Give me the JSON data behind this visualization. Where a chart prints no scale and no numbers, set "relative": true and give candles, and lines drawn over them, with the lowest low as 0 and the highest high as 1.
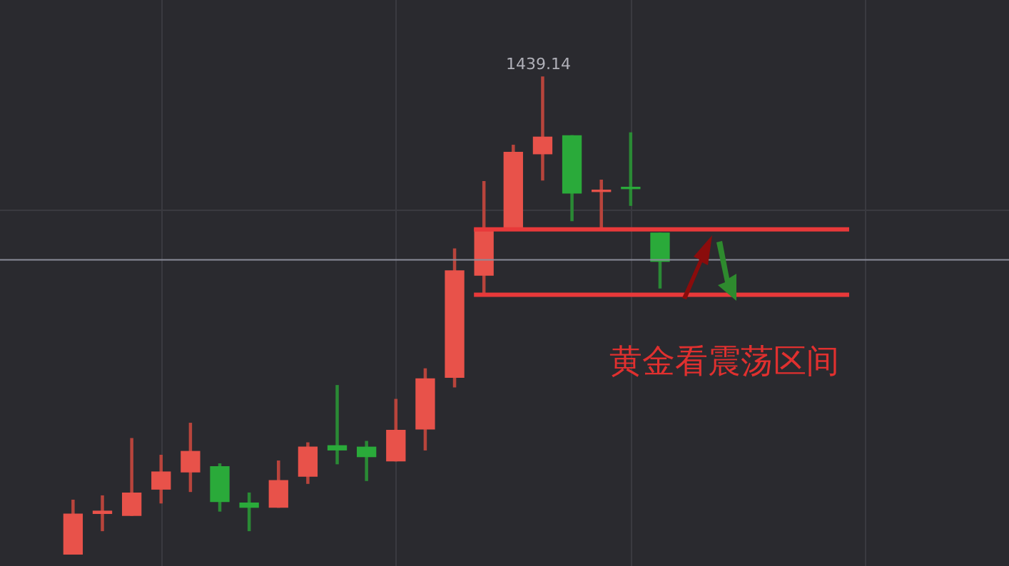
{
  "chart_data": {
    "type": "candlestick",
    "relative": true,
    "grid": true,
    "categories": [
      null,
      null,
      null,
      null,
      null,
      null,
      null,
      null,
      null,
      null,
      null,
      null,
      null,
      null,
      null,
      null,
      null,
      null,
      null,
      null,
      null
    ],
    "ohlc": [
      [
        0,
        0.114,
        0,
        0.085
      ],
      [
        0.086,
        0.123,
        0.05,
        0.091
      ],
      [
        0.082,
        0.243,
        0.082,
        0.129
      ],
      [
        0.137,
        0.208,
        0.108,
        0.173
      ],
      [
        0.173,
        0.275,
        0.132,
        0.216
      ],
      [
        0.184,
        0.19,
        0.091,
        0.111
      ],
      [
        0.108,
        0.129,
        0.05,
        0.099
      ],
      [
        0.099,
        0.196,
        0.099,
        0.155
      ],
      [
        0.164,
        0.234,
        0.149,
        0.225
      ],
      [
        0.228,
        0.354,
        0.19,
        0.219
      ],
      [
        0.225,
        0.237,
        0.155,
        0.205
      ],
      [
        0.196,
        0.325,
        0.196,
        0.26
      ],
      [
        0.263,
        0.389,
        0.219,
        0.368
      ],
      [
        0.371,
        0.64,
        0.351,
        0.594
      ],
      [
        0.585,
        0.781,
        0.547,
        0.681
      ],
      [
        0.684,
        0.857,
        0.684,
        0.842
      ],
      [
        0.839,
        1,
        0.784,
        0.874
      ],
      [
        0.877,
        0.877,
        0.699,
        0.757
      ],
      [
        0.76,
        0.784,
        0.684,
        0.763
      ],
      [
        0.769,
        0.883,
        0.731,
        0.766
      ],
      [
        0.673,
        0.673,
        0.558,
        0.614
      ]
    ],
    "colors": [
      "#e8524a",
      "#e8524a",
      "#e8524a",
      "#e8524a",
      "#e8524a",
      "#2aaa3a",
      "#2aaa3a",
      "#e8524a",
      "#e8524a",
      "#2aaa3a",
      "#2aaa3a",
      "#e8524a",
      "#e8524a",
      "#e8524a",
      "#e8524a",
      "#e8524a",
      "#e8524a",
      "#2aaa3a",
      "#e8524a",
      "#2aaa3a",
      "#2aaa3a"
    ],
    "ref_lines": [
      {
        "axis": "y",
        "value": 0.681,
        "color": "#e8393a"
      },
      {
        "axis": "y",
        "value": 0.544,
        "color": "#e8393a"
      },
      {
        "axis": "y",
        "value": 0.617,
        "color": "#8a8c99"
      }
    ],
    "annotations": [
      {
        "text": "1439.14",
        "y": 1
      },
      "黄金看震荡区间"
    ]
  }
}
